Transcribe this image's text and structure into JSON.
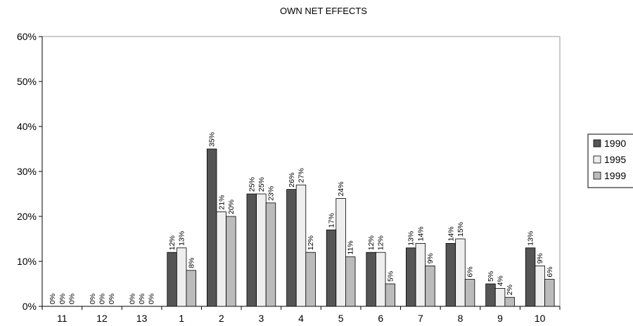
{
  "chart_data": {
    "type": "bar",
    "title": "OWN NET EFFECTS",
    "xlabel": "",
    "ylabel": "",
    "ylim": [
      0,
      60
    ],
    "yticks": [
      "0%",
      "10%",
      "20%",
      "30%",
      "40%",
      "50%",
      "60%"
    ],
    "grid": false,
    "legend_position": "right",
    "categories": [
      "11",
      "12",
      "13",
      "1",
      "2",
      "3",
      "4",
      "5",
      "6",
      "7",
      "8",
      "9",
      "10"
    ],
    "series": [
      {
        "name": "1990",
        "color": "#555555",
        "values": [
          0,
          0,
          0,
          12,
          35,
          25,
          26,
          17,
          12,
          13,
          14,
          5,
          13
        ],
        "labels": [
          "0%",
          "0%",
          "0%",
          "12%",
          "35%",
          "25%",
          "26%",
          "17%",
          "12%",
          "13%",
          "14%",
          "5%",
          "13%"
        ]
      },
      {
        "name": "1995",
        "color": "#eeeeee",
        "values": [
          0,
          0,
          0,
          13,
          21,
          25,
          27,
          24,
          12,
          14,
          15,
          4,
          9
        ],
        "labels": [
          "0%",
          "0%",
          "0%",
          "13%",
          "21%",
          "25%",
          "27%",
          "24%",
          "12%",
          "14%",
          "15%",
          "4%",
          "9%"
        ]
      },
      {
        "name": "1999",
        "color": "#bbbbbb",
        "values": [
          0,
          0,
          0,
          8,
          20,
          23,
          12,
          11,
          5,
          9,
          6,
          2,
          6
        ],
        "labels": [
          "0%",
          "0%",
          "0%",
          "8%",
          "20%",
          "23%",
          "12%",
          "11%",
          "5%",
          "9%",
          "6%",
          "2%",
          "6%"
        ]
      }
    ]
  }
}
